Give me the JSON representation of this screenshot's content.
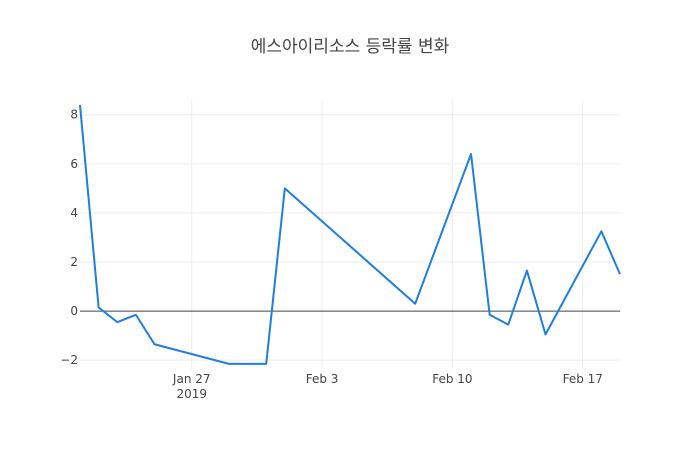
{
  "chart_data": {
    "type": "line",
    "title": "에스아이리소스 등락률 변화",
    "xlabel": "",
    "ylabel": "",
    "x_range": [
      "2019-01-21",
      "2019-02-19"
    ],
    "ylim": [
      -2.4,
      8.6
    ],
    "grid": true,
    "legend": "none",
    "line_color": "#1f7fe0",
    "zero_line": true,
    "x_ticks": [
      {
        "date": "2019-01-27",
        "label": "Jan 27",
        "sublabel": "2019"
      },
      {
        "date": "2019-02-03",
        "label": "Feb 3",
        "sublabel": ""
      },
      {
        "date": "2019-02-10",
        "label": "Feb 10",
        "sublabel": ""
      },
      {
        "date": "2019-02-17",
        "label": "Feb 17",
        "sublabel": ""
      }
    ],
    "y_ticks": [
      {
        "value": -2,
        "label": "−2"
      },
      {
        "value": 0,
        "label": "0"
      },
      {
        "value": 2,
        "label": "2"
      },
      {
        "value": 4,
        "label": "4"
      },
      {
        "value": 6,
        "label": "6"
      },
      {
        "value": 8,
        "label": "8"
      }
    ],
    "series": [
      {
        "x": [
          "2019-01-21",
          "2019-01-22",
          "2019-01-23",
          "2019-01-24",
          "2019-01-25",
          "2019-01-29",
          "2019-01-31",
          "2019-02-01",
          "2019-02-08",
          "2019-02-11",
          "2019-02-12",
          "2019-02-13",
          "2019-02-14",
          "2019-02-15",
          "2019-02-18",
          "2019-02-19"
        ],
        "values": [
          8.4,
          0.15,
          -0.45,
          -0.15,
          -1.35,
          -2.15,
          -2.15,
          5.0,
          0.3,
          6.4,
          -0.15,
          -0.55,
          1.65,
          -0.95,
          3.25,
          1.5
        ]
      }
    ]
  }
}
